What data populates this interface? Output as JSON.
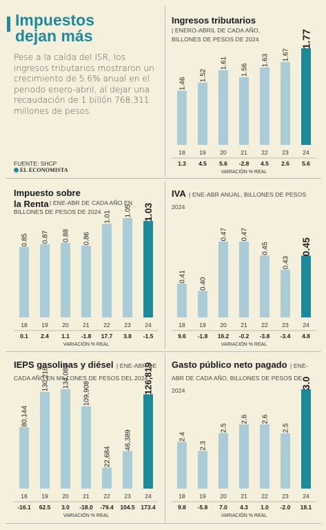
{
  "intro": {
    "title_line1": "Impuestos",
    "title_line2": "dejan más",
    "text": "Pese a la caída del ISR, los ingresos tributarios mostraron un crecimiento de 5.6% anual en el periodo enero-abril,  al dejar una recaudación de 1 billón 768,311 millones de pesos.",
    "source": "FUENTE: SHCP",
    "brand": "EL ECONOMISTA"
  },
  "colors": {
    "bar": "#a9ccd6",
    "highlight": "#1d8a9c",
    "background": "#f4f0dc"
  },
  "chart_data": [
    {
      "id": "ingresos",
      "type": "bar",
      "title": "Ingresos tributarios",
      "subtitle": "ENERO-ABRIL DE CADA AÑO, BILLONES DE PESOS DE 2024",
      "categories": [
        "18",
        "19",
        "20",
        "21",
        "22",
        "23",
        "24"
      ],
      "values": [
        1.46,
        1.52,
        1.61,
        1.56,
        1.63,
        1.67,
        1.77
      ],
      "value_labels": [
        "1.46",
        "1.52",
        "1.61",
        "1.56",
        "1.63",
        "1.67",
        "1.77"
      ],
      "variation": [
        "1.3",
        "4.5",
        "5.6",
        "-2.8",
        "4.5",
        "2.6",
        "5.6"
      ],
      "variation_label": "VARIACIÓN % REAL"
    },
    {
      "id": "isr",
      "type": "bar",
      "title": "Impuesto sobre la Renta",
      "subtitle": "ENE-ABR DE CADA AÑO EN BILLONES DE PESOS DE 2024",
      "categories": [
        "18",
        "19",
        "20",
        "21",
        "22",
        "23",
        "24"
      ],
      "values": [
        0.85,
        0.87,
        0.88,
        0.86,
        1.01,
        1.05,
        1.03
      ],
      "value_labels": [
        "0.85",
        "0.87",
        "0.88",
        "0.86",
        "1.01",
        "1.05",
        "1.03"
      ],
      "variation": [
        "0.1",
        "2.4",
        "1.1",
        "-1.8",
        "17.7",
        "3.8",
        "-1.5"
      ],
      "variation_label": "VARIACIÓN % REAL"
    },
    {
      "id": "iva",
      "type": "bar",
      "title": "IVA",
      "subtitle": "ENE-ABR ANUAL, BILLONES DE PESOS 2024",
      "categories": [
        "18",
        "19",
        "20",
        "21",
        "22",
        "23",
        "24"
      ],
      "values": [
        0.41,
        0.4,
        0.47,
        0.47,
        0.45,
        0.43,
        0.45
      ],
      "value_labels": [
        "0.41",
        "0.40",
        "0.47",
        "0.47",
        "0.45",
        "0.43",
        "0.45"
      ],
      "variation": [
        "9.6",
        "-1.8",
        "16.2",
        "-0.2",
        "-3.8",
        "-3.4",
        "4.8"
      ],
      "variation_label": "VARIACIÓN % REAL"
    },
    {
      "id": "ieps",
      "type": "bar",
      "title": "IEPS gasolinas y diésel",
      "subtitle": "ENE-ABR DE CADA AÑO EN MILLONES DE PESOS DEL 2024",
      "categories": [
        "18",
        "19",
        "20",
        "21",
        "22",
        "23",
        "24"
      ],
      "values": [
        80144,
        130218,
        134086,
        109908,
        22684,
        46389,
        126819
      ],
      "value_labels": [
        "80,144",
        "130,218",
        "134,086",
        "109,908",
        "22,684",
        "46,389",
        "126,819"
      ],
      "variation": [
        "-16.1",
        "62.5",
        "3.0",
        "-18.0",
        "-79.4",
        "104.5",
        "173.4"
      ],
      "variation_label": "VARIACIÓN % REAL"
    },
    {
      "id": "gasto",
      "type": "bar",
      "title": "Gasto público neto pagado",
      "subtitle": "ENE-ABR DE CADA AÑO, BILLONES DE PESOS DE 2024",
      "categories": [
        "18",
        "19",
        "20",
        "21",
        "22",
        "23",
        "24"
      ],
      "values": [
        2.4,
        2.3,
        2.5,
        2.6,
        2.6,
        2.5,
        3.0
      ],
      "value_labels": [
        "2.4",
        "2.3",
        "2.5",
        "2.6",
        "2.6",
        "2.5",
        "3.0"
      ],
      "variation": [
        "9.8",
        "-5.8",
        "7.0",
        "4.3",
        "1.0",
        "-2.0",
        "18.1"
      ],
      "variation_label": "VARIACIÓN % REAL"
    }
  ]
}
